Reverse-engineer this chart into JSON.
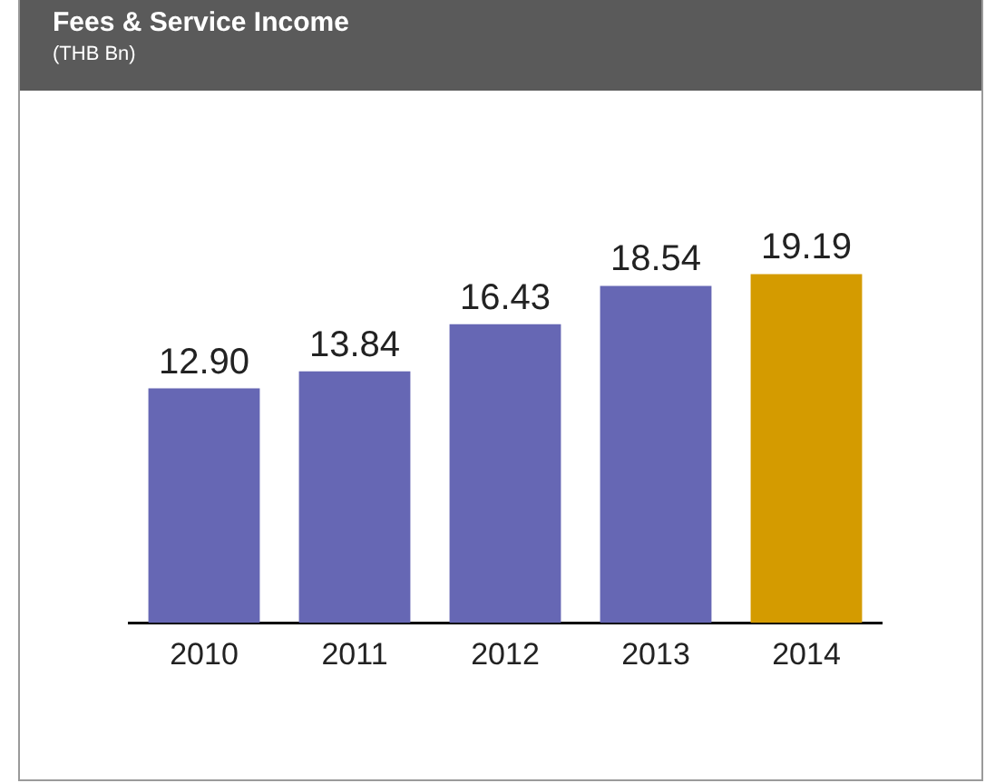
{
  "chart_data": {
    "type": "bar",
    "title": "Fees & Service Income",
    "subtitle": "(THB Bn)",
    "categories": [
      "2010",
      "2011",
      "2012",
      "2013",
      "2014"
    ],
    "values": [
      12.9,
      13.84,
      16.43,
      18.54,
      19.19
    ],
    "colors": [
      "#6667b4",
      "#6667b4",
      "#6667b4",
      "#6667b4",
      "#d49b00"
    ],
    "value_labels": [
      "12.90",
      "13.84",
      "16.43",
      "18.54",
      "19.19"
    ],
    "grid": false,
    "legend": false
  }
}
